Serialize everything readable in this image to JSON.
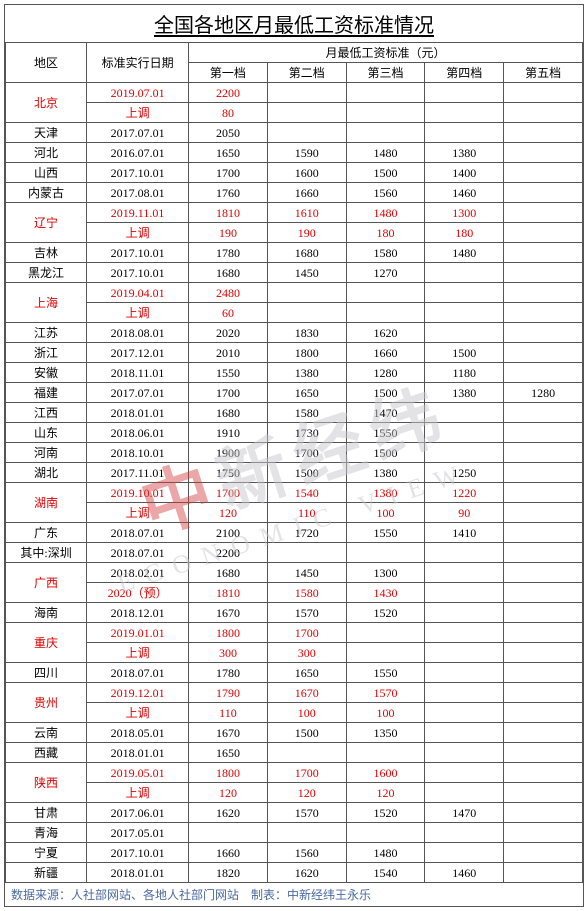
{
  "title": "全国各地区月最低工资标准情况",
  "header": {
    "region": "地区",
    "date": "标准实行日期",
    "group": "月最低工资标准（元）",
    "tiers": [
      "第一档",
      "第二档",
      "第三档",
      "第四档",
      "第五档"
    ]
  },
  "footer": "数据来源：人社部网站、各地人社部门网站　制表：中新经纬王永乐",
  "rows": [
    {
      "region": "北京",
      "red": true,
      "lines": [
        {
          "date": "2019.07.01",
          "t": [
            "2200",
            "",
            "",
            "",
            ""
          ]
        },
        {
          "date": "上调",
          "t": [
            "80",
            "",
            "",
            "",
            ""
          ]
        }
      ]
    },
    {
      "region": "天津",
      "lines": [
        {
          "date": "2017.07.01",
          "t": [
            "2050",
            "",
            "",
            "",
            ""
          ]
        }
      ]
    },
    {
      "region": "河北",
      "lines": [
        {
          "date": "2016.07.01",
          "t": [
            "1650",
            "1590",
            "1480",
            "1380",
            ""
          ]
        }
      ]
    },
    {
      "region": "山西",
      "lines": [
        {
          "date": "2017.10.01",
          "t": [
            "1700",
            "1600",
            "1500",
            "1400",
            ""
          ]
        }
      ]
    },
    {
      "region": "内蒙古",
      "lines": [
        {
          "date": "2017.08.01",
          "t": [
            "1760",
            "1660",
            "1560",
            "1460",
            ""
          ]
        }
      ]
    },
    {
      "region": "辽宁",
      "red": true,
      "lines": [
        {
          "date": "2019.11.01",
          "t": [
            "1810",
            "1610",
            "1480",
            "1300",
            ""
          ]
        },
        {
          "date": "上调",
          "t": [
            "190",
            "190",
            "180",
            "180",
            ""
          ]
        }
      ]
    },
    {
      "region": "吉林",
      "lines": [
        {
          "date": "2017.10.01",
          "t": [
            "1780",
            "1680",
            "1580",
            "1480",
            ""
          ]
        }
      ]
    },
    {
      "region": "黑龙江",
      "lines": [
        {
          "date": "2017.10.01",
          "t": [
            "1680",
            "1450",
            "1270",
            "",
            ""
          ]
        }
      ]
    },
    {
      "region": "上海",
      "red": true,
      "lines": [
        {
          "date": "2019.04.01",
          "t": [
            "2480",
            "",
            "",
            "",
            ""
          ]
        },
        {
          "date": "上调",
          "t": [
            "60",
            "",
            "",
            "",
            ""
          ]
        }
      ]
    },
    {
      "region": "江苏",
      "lines": [
        {
          "date": "2018.08.01",
          "t": [
            "2020",
            "1830",
            "1620",
            "",
            ""
          ]
        }
      ]
    },
    {
      "region": "浙江",
      "lines": [
        {
          "date": "2017.12.01",
          "t": [
            "2010",
            "1800",
            "1660",
            "1500",
            ""
          ]
        }
      ]
    },
    {
      "region": "安徽",
      "lines": [
        {
          "date": "2018.11.01",
          "t": [
            "1550",
            "1380",
            "1280",
            "1180",
            ""
          ]
        }
      ]
    },
    {
      "region": "福建",
      "lines": [
        {
          "date": "2017.07.01",
          "t": [
            "1700",
            "1650",
            "1500",
            "1380",
            "1280"
          ]
        }
      ]
    },
    {
      "region": "江西",
      "lines": [
        {
          "date": "2018.01.01",
          "t": [
            "1680",
            "1580",
            "1470",
            "",
            ""
          ]
        }
      ]
    },
    {
      "region": "山东",
      "lines": [
        {
          "date": "2018.06.01",
          "t": [
            "1910",
            "1730",
            "1550",
            "",
            ""
          ]
        }
      ]
    },
    {
      "region": "河南",
      "lines": [
        {
          "date": "2018.10.01",
          "t": [
            "1900",
            "1700",
            "1500",
            "",
            ""
          ]
        }
      ]
    },
    {
      "region": "湖北",
      "lines": [
        {
          "date": "2017.11.01",
          "t": [
            "1750",
            "1500",
            "1380",
            "1250",
            ""
          ]
        }
      ]
    },
    {
      "region": "湖南",
      "red": true,
      "lines": [
        {
          "date": "2019.10.01",
          "t": [
            "1700",
            "1540",
            "1380",
            "1220",
            ""
          ]
        },
        {
          "date": "上调",
          "t": [
            "120",
            "110",
            "100",
            "90",
            ""
          ]
        }
      ]
    },
    {
      "region": "广东",
      "lines": [
        {
          "date": "2018.07.01",
          "t": [
            "2100",
            "1720",
            "1550",
            "1410",
            ""
          ]
        }
      ]
    },
    {
      "region": "其中:深圳",
      "lines": [
        {
          "date": "2018.07.01",
          "t": [
            "2200",
            "",
            "",
            "",
            ""
          ]
        }
      ]
    },
    {
      "region": "广西",
      "red": true,
      "lines": [
        {
          "date": "2018.02.01",
          "t": [
            "1680",
            "1450",
            "1300",
            "",
            ""
          ],
          "black": true
        },
        {
          "date": "2020（预）",
          "t": [
            "1810",
            "1580",
            "1430",
            "",
            ""
          ]
        }
      ]
    },
    {
      "region": "海南",
      "lines": [
        {
          "date": "2018.12.01",
          "t": [
            "1670",
            "1570",
            "1520",
            "",
            ""
          ]
        }
      ]
    },
    {
      "region": "重庆",
      "red": true,
      "lines": [
        {
          "date": "2019.01.01",
          "t": [
            "1800",
            "1700",
            "",
            "",
            ""
          ]
        },
        {
          "date": "上调",
          "t": [
            "300",
            "300",
            "",
            "",
            ""
          ]
        }
      ]
    },
    {
      "region": "四川",
      "lines": [
        {
          "date": "2018.07.01",
          "t": [
            "1780",
            "1650",
            "1550",
            "",
            ""
          ]
        }
      ]
    },
    {
      "region": "贵州",
      "red": true,
      "lines": [
        {
          "date": "2019.12.01",
          "t": [
            "1790",
            "1670",
            "1570",
            "",
            ""
          ]
        },
        {
          "date": "上调",
          "t": [
            "110",
            "100",
            "100",
            "",
            ""
          ]
        }
      ]
    },
    {
      "region": "云南",
      "lines": [
        {
          "date": "2018.05.01",
          "t": [
            "1670",
            "1500",
            "1350",
            "",
            ""
          ]
        }
      ]
    },
    {
      "region": "西藏",
      "lines": [
        {
          "date": "2018.01.01",
          "t": [
            "1650",
            "",
            "",
            "",
            ""
          ]
        }
      ]
    },
    {
      "region": "陕西",
      "red": true,
      "lines": [
        {
          "date": "2019.05.01",
          "t": [
            "1800",
            "1700",
            "1600",
            "",
            ""
          ]
        },
        {
          "date": "上调",
          "t": [
            "120",
            "120",
            "120",
            "",
            ""
          ]
        }
      ]
    },
    {
      "region": "甘肃",
      "lines": [
        {
          "date": "2017.06.01",
          "t": [
            "1620",
            "1570",
            "1520",
            "1470",
            ""
          ]
        }
      ]
    },
    {
      "region": "青海",
      "lines": [
        {
          "date": "2017.05.01",
          "t": [
            "",
            "",
            "",
            "",
            ""
          ]
        }
      ]
    },
    {
      "region": "宁夏",
      "lines": [
        {
          "date": "2017.10.01",
          "t": [
            "1660",
            "1560",
            "1480",
            "",
            ""
          ]
        }
      ]
    },
    {
      "region": "新疆",
      "lines": [
        {
          "date": "2018.01.01",
          "t": [
            "1820",
            "1620",
            "1540",
            "1460",
            ""
          ]
        }
      ]
    }
  ]
}
